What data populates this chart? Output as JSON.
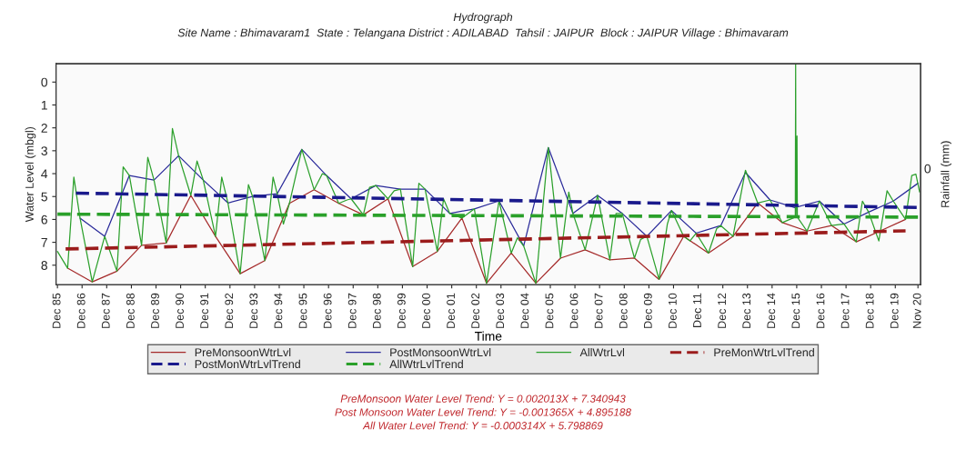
{
  "chart_data": {
    "type": "line",
    "title": "Hydrograph",
    "subtitle": "Site Name : Bhimavaram1  State : Telangana District : ADILABAD  Tahsil : JAIPUR  Block : JAIPUR Village : Bhimavaram",
    "xlabel": "Time",
    "ylabel": "Water Level (mbgl)",
    "y2label": "Rainfall (mm)",
    "xlim": [
      "1985-11-10",
      "2020-12-10"
    ],
    "ylim": [
      8.85,
      -0.8
    ],
    "yticks": [
      0,
      1,
      2,
      3,
      4,
      5,
      6,
      7,
      8
    ],
    "xticks": [
      {
        "value": "1985-12",
        "label": "Dec 85"
      },
      {
        "value": "1986-12",
        "label": "Dec 86"
      },
      {
        "value": "1987-12",
        "label": "Dec 87"
      },
      {
        "value": "1988-12",
        "label": "Dec 88"
      },
      {
        "value": "1989-12",
        "label": "Dec 89"
      },
      {
        "value": "1990-12",
        "label": "Dec 90"
      },
      {
        "value": "1991-12",
        "label": "Dec 91"
      },
      {
        "value": "1992-12",
        "label": "Dec 92"
      },
      {
        "value": "1993-12",
        "label": "Dec 93"
      },
      {
        "value": "1994-12",
        "label": "Dec 94"
      },
      {
        "value": "1995-12",
        "label": "Dec 95"
      },
      {
        "value": "1996-12",
        "label": "Dec 96"
      },
      {
        "value": "1997-12",
        "label": "Dec 97"
      },
      {
        "value": "1998-12",
        "label": "Dec 98"
      },
      {
        "value": "1999-12",
        "label": "Dec 99"
      },
      {
        "value": "2000-12",
        "label": "Dec 00"
      },
      {
        "value": "2001-12",
        "label": "Dec 01"
      },
      {
        "value": "2002-12",
        "label": "Dec 02"
      },
      {
        "value": "2003-12",
        "label": "Dec 03"
      },
      {
        "value": "2004-12",
        "label": "Dec 04"
      },
      {
        "value": "2005-12",
        "label": "Dec 05"
      },
      {
        "value": "2006-12",
        "label": "Dec 06"
      },
      {
        "value": "2007-12",
        "label": "Dec 07"
      },
      {
        "value": "2008-12",
        "label": "Dec 08"
      },
      {
        "value": "2009-12",
        "label": "Dec 09"
      },
      {
        "value": "2010-12",
        "label": "Dec 10"
      },
      {
        "value": "2011-12",
        "label": "Dec 11"
      },
      {
        "value": "2012-12",
        "label": "Dec 12"
      },
      {
        "value": "2013-12",
        "label": "Dec 13"
      },
      {
        "value": "2014-12",
        "label": "Dec 14"
      },
      {
        "value": "2015-12",
        "label": "Dec 15"
      },
      {
        "value": "2016-12",
        "label": "Dec 16"
      },
      {
        "value": "2017-12",
        "label": "Dec 17"
      },
      {
        "value": "2018-12",
        "label": "Dec 18"
      },
      {
        "value": "2019-12",
        "label": "Dec 19"
      },
      {
        "value": "2020-11",
        "label": "Nov 20"
      }
    ],
    "grid": false,
    "legend": "bottom",
    "marker": "none",
    "series": [
      {
        "name": "PreMonsoonWtrLvl",
        "color": "#a52a2a",
        "line_style": "solid",
        "x": [
          "1986-05",
          "1987-05",
          "1988-05",
          "1989-05",
          "1990-05",
          "1991-05",
          "1992-05",
          "1993-05",
          "1994-05",
          "1995-05",
          "1996-05",
          "1997-05",
          "1998-05",
          "1999-05",
          "2000-05",
          "2001-05",
          "2002-05",
          "2003-05",
          "2004-05",
          "2005-05",
          "2006-05",
          "2007-05",
          "2008-05",
          "2009-05",
          "2010-05",
          "2011-05",
          "2012-05",
          "2013-05",
          "2014-05",
          "2015-05",
          "2016-05",
          "2017-05",
          "2018-05",
          "2019-05",
          "2020-05"
        ],
        "values": [
          8.13,
          8.73,
          8.26,
          7.13,
          7.03,
          4.95,
          6.74,
          8.37,
          7.8,
          5.3,
          4.7,
          5.3,
          5.8,
          5.1,
          8.06,
          7.4,
          5.94,
          8.79,
          7.47,
          8.79,
          7.69,
          7.33,
          7.77,
          7.69,
          8.62,
          6.74,
          7.47,
          6.74,
          5.28,
          6.14,
          6.51,
          6.27,
          6.98,
          6.49,
          6.0
        ]
      },
      {
        "name": "PostMonsoonWtrLvl",
        "color": "#2a2a9a",
        "line_style": "solid",
        "x": [
          "1986-11",
          "1987-11",
          "1988-11",
          "1989-11",
          "1990-11",
          "1991-11",
          "1992-11",
          "1993-11",
          "1994-11",
          "1995-11",
          "1996-11",
          "1997-11",
          "1998-11",
          "1999-11",
          "2000-11",
          "2001-11",
          "2002-11",
          "2003-11",
          "2004-11",
          "2005-11",
          "2006-11",
          "2007-11",
          "2008-11",
          "2009-11",
          "2010-11",
          "2011-11",
          "2012-11",
          "2013-11",
          "2014-11",
          "2015-11",
          "2016-11",
          "2017-11",
          "2018-11",
          "2019-11",
          "2020-11"
        ],
        "values": [
          5.94,
          6.74,
          4.08,
          4.28,
          3.22,
          4.28,
          5.28,
          5.0,
          4.88,
          2.94,
          4.08,
          5.1,
          4.52,
          4.68,
          4.68,
          5.74,
          5.54,
          5.19,
          7.16,
          2.86,
          5.74,
          4.95,
          5.74,
          6.74,
          5.61,
          6.6,
          6.27,
          3.95,
          5.15,
          5.48,
          5.2,
          6.2,
          5.68,
          5.2,
          4.42
        ]
      },
      {
        "name": "AllWtrLvl",
        "color": "#2ca02c",
        "line_style": "solid",
        "x": [
          "1985-12",
          "1986-05",
          "1986-08",
          "1986-11",
          "1987-05",
          "1987-11",
          "1988-05",
          "1988-08",
          "1988-11",
          "1989-05",
          "1989-08",
          "1989-11",
          "1990-05",
          "1990-08",
          "1990-11",
          "1991-05",
          "1991-08",
          "1991-11",
          "1992-05",
          "1992-08",
          "1992-11",
          "1993-05",
          "1993-09",
          "1993-11",
          "1994-05",
          "1994-09",
          "1994-11",
          "1995-02",
          "1995-05",
          "1995-11",
          "1996-05",
          "1996-09",
          "1996-11",
          "1997-05",
          "1997-09",
          "1997-11",
          "1998-05",
          "1998-08",
          "1998-11",
          "1999-05",
          "1999-08",
          "1999-11",
          "2000-05",
          "2000-08",
          "2000-11",
          "2001-05",
          "2001-08",
          "2001-11",
          "2002-05",
          "2002-11",
          "2003-05",
          "2003-11",
          "2004-05",
          "2004-08",
          "2004-11",
          "2005-05",
          "2005-11",
          "2006-05",
          "2006-09",
          "2006-11",
          "2007-05",
          "2007-11",
          "2008-05",
          "2008-08",
          "2008-11",
          "2009-05",
          "2009-08",
          "2009-11",
          "2010-05",
          "2010-09",
          "2010-11",
          "2011-05",
          "2011-08",
          "2011-11",
          "2012-05",
          "2012-09",
          "2012-11",
          "2013-05",
          "2013-11",
          "2014-05",
          "2014-11",
          "2015-05",
          "2015-11-10",
          "2015-11-15",
          "2015-11-20",
          "2015-12-05",
          "2015-12-10",
          "2016-05",
          "2016-11",
          "2017-05",
          "2017-11",
          "2018-05",
          "2018-08",
          "2018-11",
          "2019-04",
          "2019-08",
          "2019-11",
          "2020-05",
          "2020-08",
          "2020-10",
          "2020-11-25"
        ],
        "values": [
          7.4,
          8.13,
          4.15,
          5.94,
          8.73,
          6.74,
          8.26,
          3.71,
          4.08,
          7.13,
          3.29,
          4.28,
          7.03,
          2.03,
          3.22,
          4.95,
          3.45,
          4.28,
          6.74,
          4.15,
          5.28,
          8.37,
          4.48,
          5.0,
          7.8,
          4.15,
          4.88,
          6.2,
          5.3,
          2.94,
          4.7,
          4.0,
          4.08,
          5.3,
          5.15,
          5.1,
          5.8,
          4.6,
          4.52,
          5.1,
          4.75,
          4.68,
          8.06,
          4.42,
          4.68,
          7.4,
          5.1,
          5.74,
          5.94,
          5.54,
          8.79,
          5.19,
          7.47,
          6.8,
          7.16,
          8.79,
          2.86,
          7.69,
          4.81,
          5.74,
          7.33,
          4.95,
          7.77,
          5.74,
          5.74,
          7.69,
          6.87,
          6.74,
          8.62,
          6.2,
          5.61,
          6.74,
          6.94,
          6.6,
          7.47,
          6.4,
          6.27,
          6.74,
          3.85,
          5.28,
          5.15,
          6.14,
          5.9,
          -0.8,
          5.9,
          2.36,
          5.9,
          6.51,
          5.2,
          6.27,
          6.2,
          6.98,
          5.2,
          5.68,
          6.94,
          4.75,
          5.2,
          6.0,
          4.08,
          4.02,
          4.8
        ]
      },
      {
        "name": "PreMonWtrLvlTrend",
        "color": "#9b1c1c",
        "line_style": "dashed",
        "x": [
          "1986-04",
          "2020-05"
        ],
        "values": [
          7.29,
          6.5
        ]
      },
      {
        "name": "PostMonWtrLvlTrend",
        "color": "#1a1a8c",
        "line_style": "dashed",
        "x": [
          "1986-09",
          "2020-11"
        ],
        "values": [
          4.85,
          5.48
        ]
      },
      {
        "name": "AllWtrLvlTrend",
        "color": "#2aa02a",
        "line_style": "dashed",
        "x": [
          "1985-12",
          "2020-11"
        ],
        "values": [
          5.77,
          5.9
        ]
      }
    ],
    "annotations": [
      "0",
      "PreMonsoon Water Level Trend: Y = 0.002013X + 7.340943",
      "Post Monsoon Water Level Trend: Y = -0.001365X + 4.895188",
      "All Water Level Trend: Y = -0.000314X + 5.798869"
    ]
  }
}
